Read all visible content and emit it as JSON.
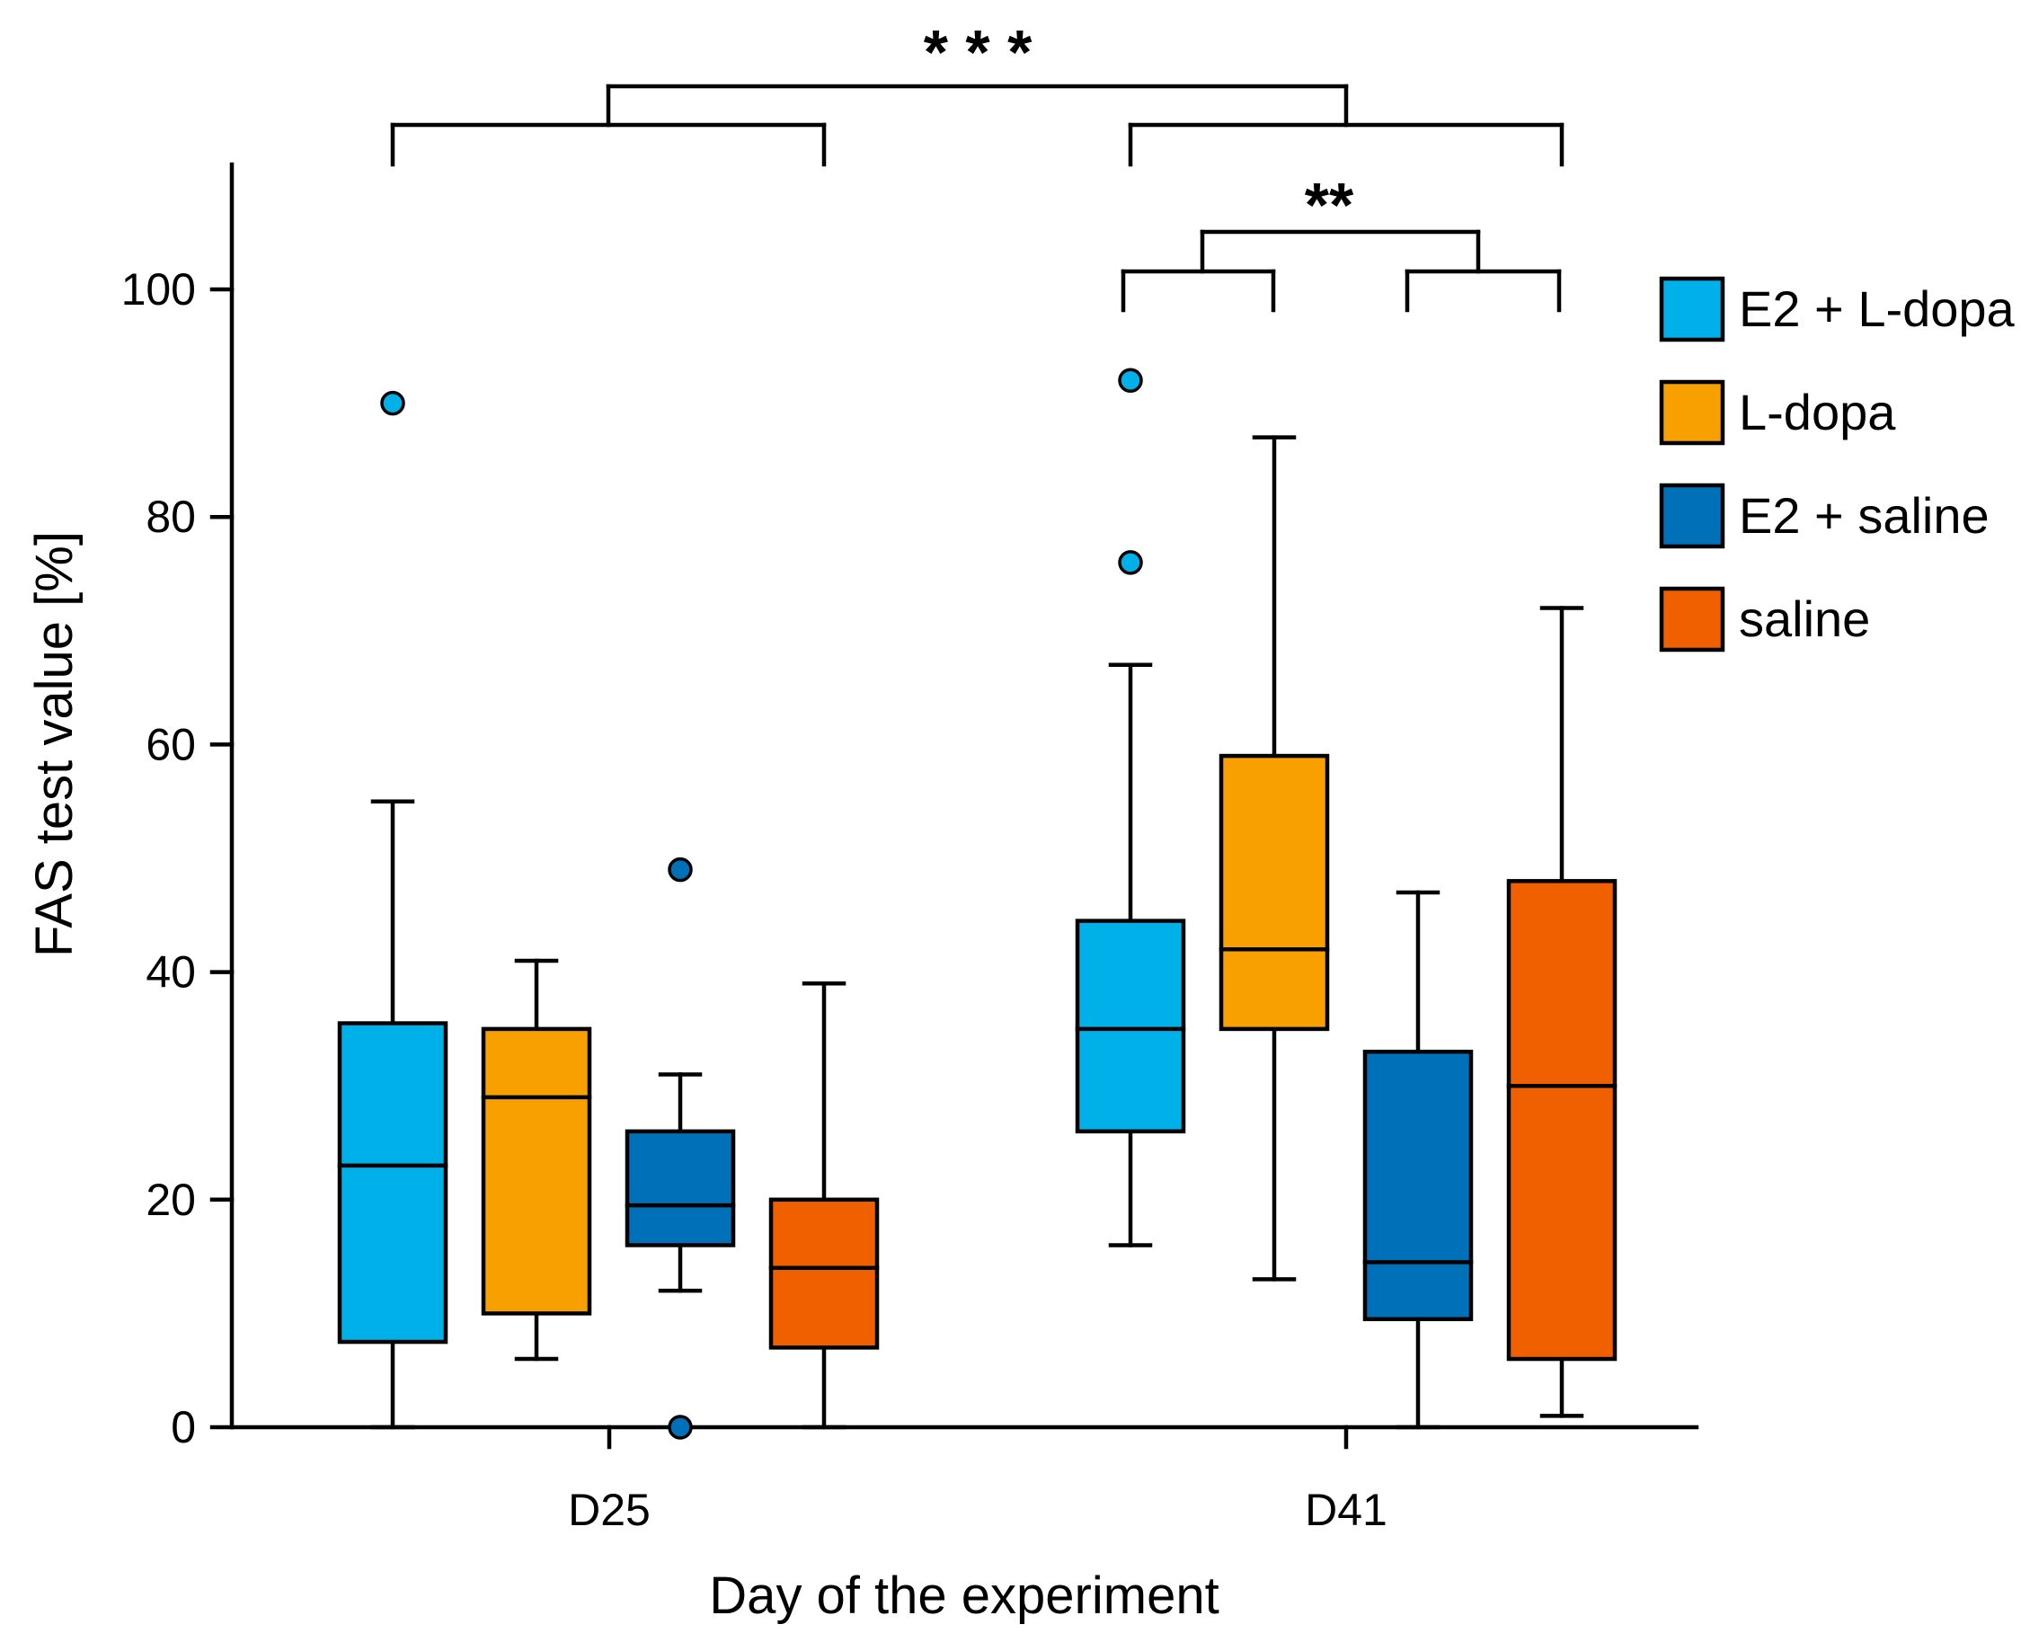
{
  "chart_data": {
    "type": "boxplot",
    "title": "",
    "xlabel": "Day of the experiment",
    "ylabel": "FAS test value [%]",
    "ylim": [
      0,
      110
    ],
    "yticks": [
      0,
      20,
      40,
      60,
      80,
      100
    ],
    "categories": [
      "D25",
      "D41"
    ],
    "series": [
      {
        "name": "E2 + L-dopa",
        "color": "#00b0e8",
        "boxes": [
          {
            "group": "D25",
            "min": 0,
            "q1": 7.5,
            "median": 23,
            "q3": 35.5,
            "max": 55,
            "outliers": [
              90
            ]
          },
          {
            "group": "D41",
            "min": 16,
            "q1": 26,
            "median": 35,
            "q3": 44.5,
            "max": 67,
            "outliers": [
              76,
              92
            ]
          }
        ]
      },
      {
        "name": "L-dopa",
        "color": "#f8a000",
        "boxes": [
          {
            "group": "D25",
            "min": 6,
            "q1": 10,
            "median": 29,
            "q3": 35,
            "max": 41,
            "outliers": []
          },
          {
            "group": "D41",
            "min": 13,
            "q1": 35,
            "median": 42,
            "q3": 59,
            "max": 87,
            "outliers": []
          }
        ]
      },
      {
        "name": "E2 + saline",
        "color": "#0070b8",
        "boxes": [
          {
            "group": "D25",
            "min": 12,
            "q1": 16,
            "median": 19.5,
            "q3": 26,
            "max": 31,
            "outliers": [
              49,
              0
            ]
          },
          {
            "group": "D41",
            "min": 0,
            "q1": 9.5,
            "median": 14.5,
            "q3": 33,
            "max": 47,
            "outliers": []
          }
        ]
      },
      {
        "name": "saline",
        "color": "#f06000",
        "boxes": [
          {
            "group": "D25",
            "min": 0,
            "q1": 7,
            "median": 14,
            "q3": 20,
            "max": 39,
            "outliers": []
          },
          {
            "group": "D41",
            "min": 1,
            "q1": 6,
            "median": 30,
            "q3": 48,
            "max": 72,
            "outliers": []
          }
        ]
      }
    ],
    "significance": [
      {
        "label": "* * *",
        "comparison": "D25 vs D41"
      },
      {
        "label": "**",
        "comparison": "D41: (E2 + L-dopa, L-dopa) vs (E2 + saline, saline)"
      }
    ],
    "legend_position": "right"
  }
}
